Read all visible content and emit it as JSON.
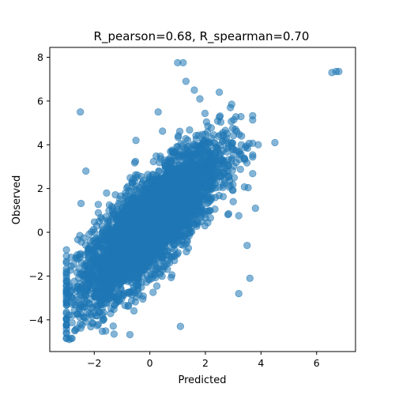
{
  "chart_data": {
    "type": "scatter",
    "title": "R_pearson=0.68, R_spearman=0.70",
    "xlabel": "Predicted",
    "ylabel": "Observed",
    "xlim": [
      -3.6,
      7.4
    ],
    "ylim": [
      -5.45,
      8.45
    ],
    "xticks": [
      -2,
      0,
      2,
      4,
      6
    ],
    "yticks": [
      -4,
      -2,
      0,
      2,
      4,
      6,
      8
    ],
    "xtick_labels": [
      "−2",
      "0",
      "2",
      "4",
      "6"
    ],
    "ytick_labels": [
      "−4",
      "−2",
      "0",
      "2",
      "4",
      "6",
      "8"
    ],
    "grid": false,
    "marker_color": "#1f77b4",
    "marker_alpha": 0.55,
    "n_generated_points": 4200,
    "series": [
      {
        "x": [
          6.7,
          6.8,
          6.55,
          1.0,
          1.2,
          1.3,
          -2.9,
          -2.7,
          4.5,
          3.8,
          3.6,
          3.2,
          3.9,
          0.3,
          -2.5,
          -2.3,
          2.5,
          1.6,
          1.8,
          -0.5,
          0.8,
          2.9,
          3.3,
          3.0,
          3.5,
          1.1
        ],
        "y": [
          7.35,
          7.35,
          7.3,
          7.75,
          7.75,
          6.9,
          -4.9,
          -4.5,
          4.1,
          1.1,
          -2.1,
          -2.8,
          4.0,
          5.5,
          5.5,
          2.8,
          6.4,
          6.5,
          6.1,
          4.2,
          2.1,
          5.7,
          4.4,
          1.4,
          -0.6,
          -4.3
        ]
      }
    ]
  }
}
